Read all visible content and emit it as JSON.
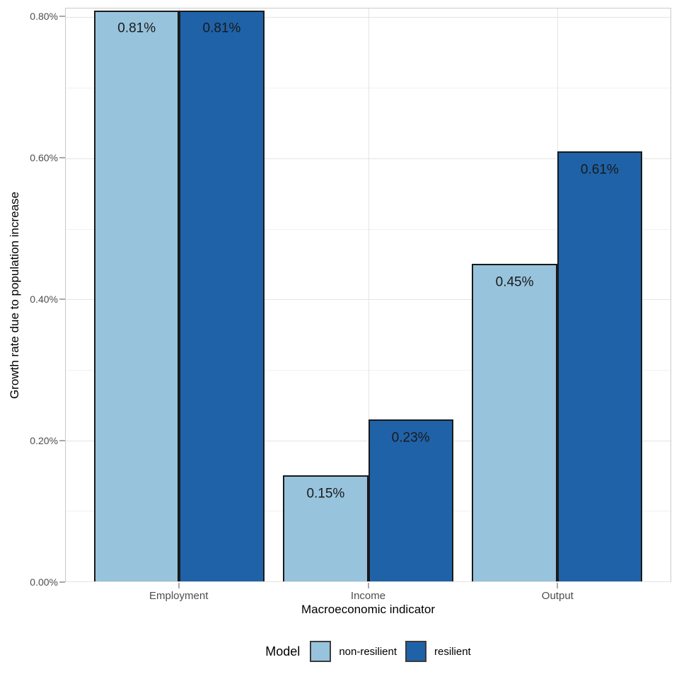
{
  "chart_data": {
    "type": "bar",
    "categories": [
      "Employment",
      "Income",
      "Output"
    ],
    "series": [
      {
        "name": "non-resilient",
        "color": "#97C3DD",
        "values": [
          0.81,
          0.15,
          0.45
        ],
        "value_labels": [
          "0.81%",
          "0.15%",
          "0.45%"
        ]
      },
      {
        "name": "resilient",
        "color": "#1F62A8",
        "values": [
          0.81,
          0.23,
          0.61
        ],
        "value_labels": [
          "0.81%",
          "0.23%",
          "0.61%"
        ]
      }
    ],
    "title": "",
    "xlabel": "Macroeconomic indicator",
    "ylabel": "Growth rate due to population increase",
    "ylim": [
      0,
      0.8125
    ],
    "y_major_ticks": [
      {
        "value": 0.0,
        "label": "0.00%"
      },
      {
        "value": 0.2,
        "label": "0.20%"
      },
      {
        "value": 0.4,
        "label": "0.40%"
      },
      {
        "value": 0.6,
        "label": "0.60%"
      },
      {
        "value": 0.8,
        "label": "0.80%"
      }
    ],
    "y_minor_ticks": [
      0.1,
      0.3,
      0.5,
      0.7
    ],
    "grid": true,
    "legend_position": "bottom",
    "bar_outline_color": "#1A1A1A",
    "value_label_color": "#1A1A1A"
  },
  "legend": {
    "title": "Model",
    "items": [
      {
        "label": "non-resilient",
        "color": "#97C3DD"
      },
      {
        "label": "resilient",
        "color": "#1F62A8"
      }
    ]
  },
  "colors": {
    "background": "#FFFFFF",
    "panel_border": "#C9C9C9",
    "gridline_major": "#E4E4E4",
    "gridline_minor": "#F1F1F1",
    "tick_mark": "#A9A9A9",
    "tick_label": "#4D4D4D",
    "axis_title": "#000000"
  }
}
